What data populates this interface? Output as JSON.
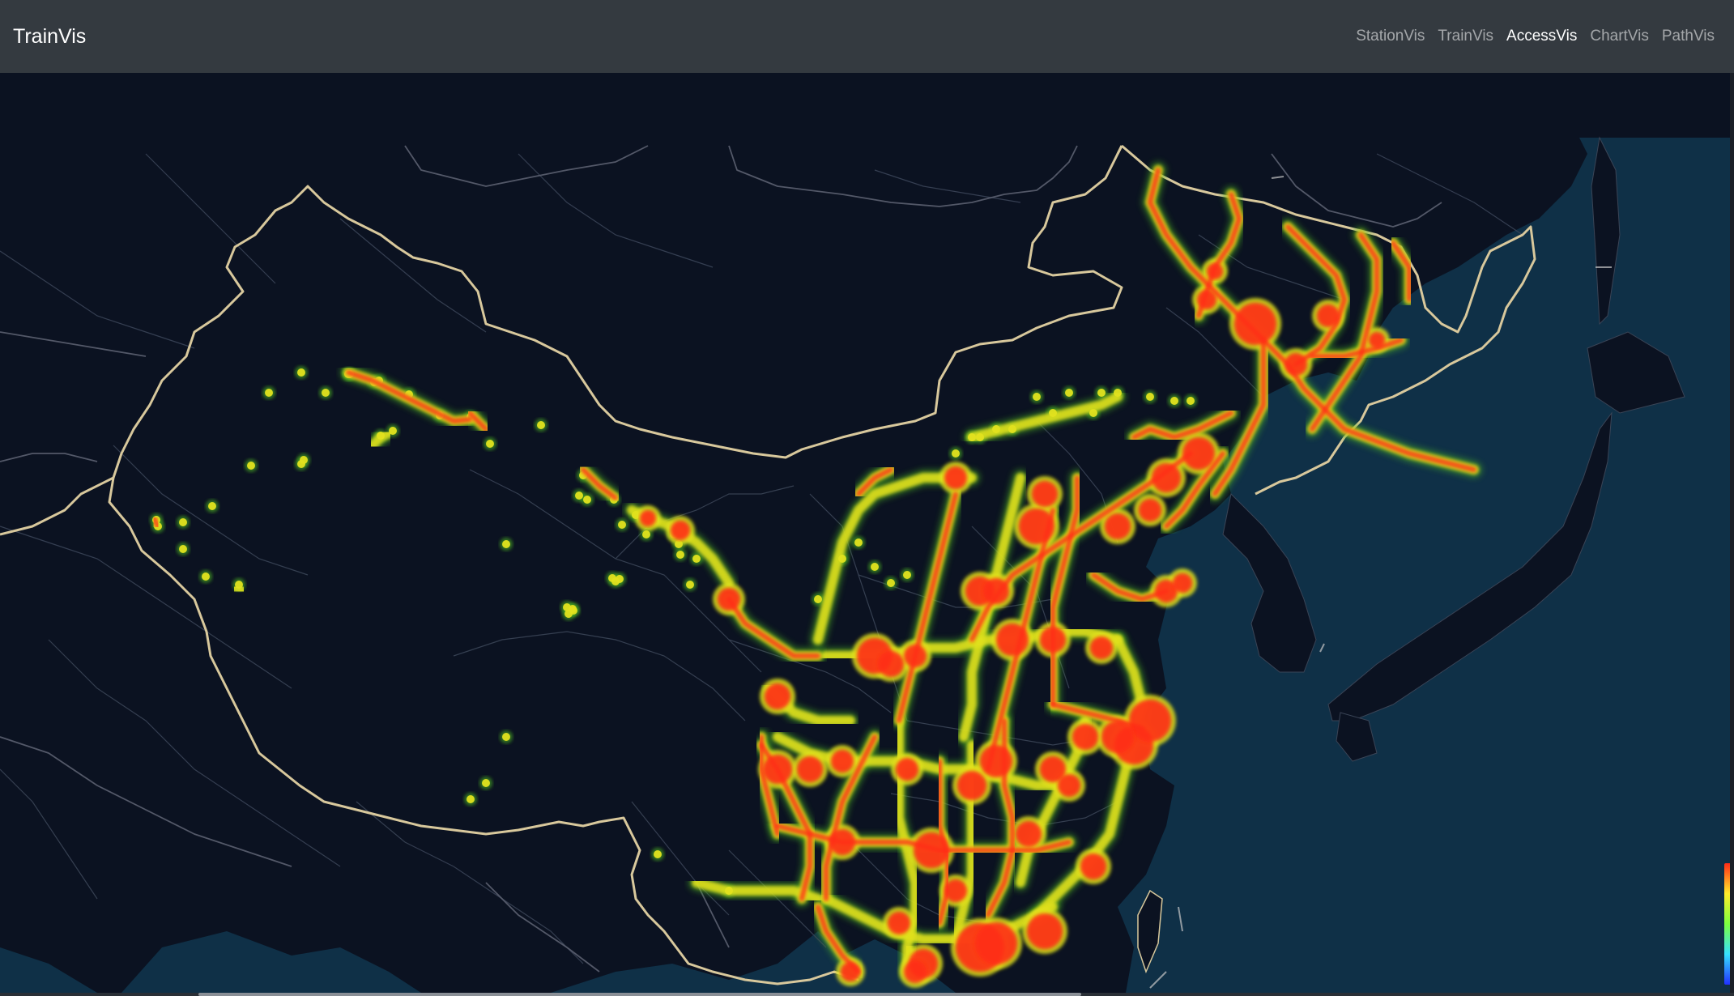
{
  "app": {
    "brand": "TrainVis"
  },
  "nav": {
    "items": [
      {
        "label": "StationVis",
        "active": false
      },
      {
        "label": "TrainVis",
        "active": false
      },
      {
        "label": "AccessVis",
        "active": true
      },
      {
        "label": "ChartVis",
        "active": false
      },
      {
        "label": "PathVis",
        "active": false
      }
    ]
  },
  "map": {
    "basemap": "dark",
    "colors": {
      "land": "#0b1221",
      "sea": "#0f3047",
      "border": "#d8c89c",
      "province": "#3a4456",
      "heat_low": "#4cb320",
      "heat_mid": "#e1e11f",
      "heat_high": "#ff2d12"
    },
    "legend_gradient": [
      "#2130ff",
      "#36e0ff",
      "#7bff3f",
      "#ffeb2a",
      "#ff2a16"
    ]
  }
}
